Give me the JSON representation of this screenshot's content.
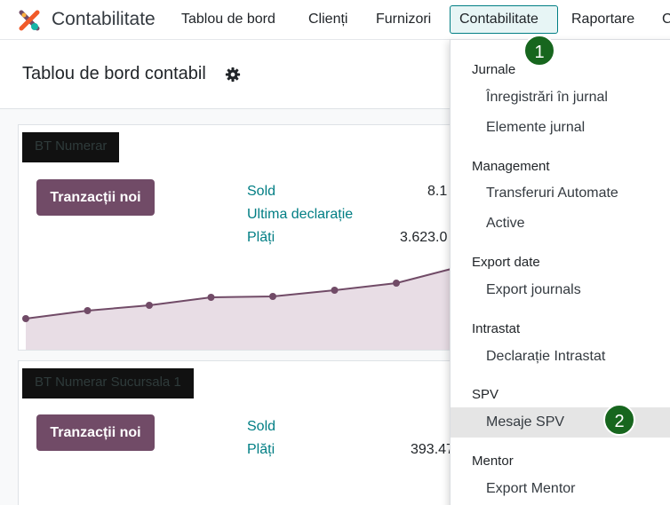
{
  "navbar": {
    "app_name": "Contabilitate",
    "items": [
      "Tablou de bord",
      "Clienți",
      "Furnizori",
      "Contabilitate",
      "Raportare",
      "C"
    ],
    "brand_colors": [
      "#f15a29",
      "#fbb040",
      "#17b5a7",
      "#714b67"
    ]
  },
  "page": {
    "title": "Tablou de bord contabil",
    "settings_icon": "gear-icon"
  },
  "cards": [
    {
      "name": "BT Numerar",
      "button_label": "Tranzacții noi",
      "stats": [
        {
          "label": "Sold",
          "value": "8.1"
        },
        {
          "label": "Ultima declarație",
          "value": ""
        },
        {
          "label": "Plăți",
          "value": "3.623.0"
        }
      ],
      "chart_data": {
        "type": "area",
        "values": [
          0,
          9,
          15,
          24,
          25,
          32,
          40,
          58
        ],
        "color": "#714b67",
        "fill": "#e8dde5"
      }
    },
    {
      "name": "BT Numerar Sucursala 1",
      "button_label": "Tranzacții noi",
      "stats": [
        {
          "label": "Sold",
          "value": ""
        },
        {
          "label": "Plăți",
          "value": "393.47"
        }
      ]
    }
  ],
  "dropdown": {
    "sections": [
      {
        "title": "Jurnale",
        "items": [
          "Înregistrări în jurnal",
          "Elemente jurnal"
        ]
      },
      {
        "title": "Management",
        "items": [
          "Transferuri Automate",
          "Active"
        ]
      },
      {
        "title": "Export date",
        "items": [
          "Export journals"
        ]
      },
      {
        "title": "Intrastat",
        "items": [
          "Declarație Intrastat"
        ]
      },
      {
        "title": "SPV",
        "items": [
          "Mesaje SPV"
        ]
      },
      {
        "title": "Mentor",
        "items": [
          "Export Mentor"
        ]
      }
    ]
  },
  "markers": [
    "1",
    "2"
  ],
  "colors": {
    "accent": "#714b67",
    "link": "#017e84",
    "marker": "#17661e"
  }
}
